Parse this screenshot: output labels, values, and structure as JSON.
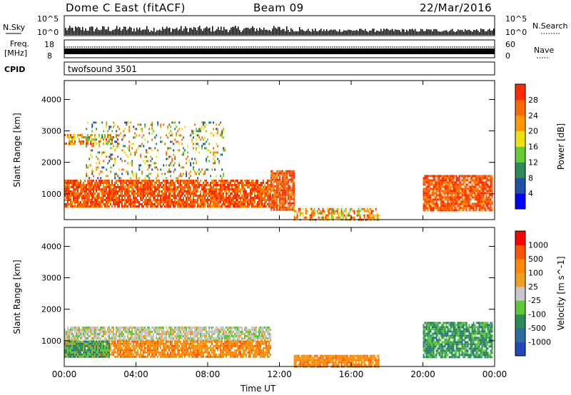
{
  "header": {
    "title": "Dome C East (fitACF)",
    "beam": "Beam 09",
    "date": "22/Mar/2016"
  },
  "sky_panel": {
    "left_label": "N.Sky",
    "left_ticks": [
      "10^5",
      "10^0"
    ],
    "right_ticks": [
      "10^5",
      "10^0"
    ],
    "right_label": "N.Search"
  },
  "freq_panel": {
    "left_label_line1": "Freq.",
    "left_label_line2": "[MHz]",
    "left_ticks": [
      "18",
      "8"
    ],
    "right_ticks": [
      "60",
      "0"
    ],
    "right_label": "Nave"
  },
  "cpid_panel": {
    "label": "CPID",
    "program": "twofsound 3501"
  },
  "chart_data": [
    {
      "type": "heatmap",
      "parameter": "Power",
      "ylabel": "Slant Range [km]",
      "xlabel": "Time UT",
      "x_ticks": [
        "00:00",
        "04:00",
        "08:00",
        "12:00",
        "16:00",
        "20:00",
        "00:00"
      ],
      "xlim": [
        0,
        24
      ],
      "y_ticks": [
        1000,
        2000,
        3000,
        4000
      ],
      "ylim": [
        180,
        4600
      ],
      "colorbar": {
        "label": "Power [dB]",
        "ticks": [
          "4",
          "8",
          "12",
          "16",
          "20",
          "24",
          "28"
        ],
        "colors": [
          "#0000ff",
          "#1f4fa8",
          "#2e8b57",
          "#66cc33",
          "#f0e010",
          "#ff9900",
          "#ff6a00",
          "#ff2a00"
        ]
      },
      "echo_regions": [
        {
          "t": [
            0.0,
            11.5
          ],
          "r": [
            600,
            1450
          ],
          "level": "strong"
        },
        {
          "t": [
            0.0,
            3.0
          ],
          "r": [
            2600,
            2900
          ],
          "level": "moderate"
        },
        {
          "t": [
            1.2,
            9.0
          ],
          "r": [
            1500,
            3300
          ],
          "level": "weak"
        },
        {
          "t": [
            11.5,
            12.8
          ],
          "r": [
            500,
            1750
          ],
          "level": "strong"
        },
        {
          "t": [
            12.8,
            17.5
          ],
          "r": [
            200,
            550
          ],
          "level": "moderate"
        },
        {
          "t": [
            20.0,
            23.9
          ],
          "r": [
            500,
            1600
          ],
          "level": "strong"
        }
      ]
    },
    {
      "type": "heatmap",
      "parameter": "Velocity",
      "ylabel": "Slant Range [km]",
      "xlabel": "Time UT",
      "x_ticks": [
        "00:00",
        "04:00",
        "08:00",
        "12:00",
        "16:00",
        "20:00",
        "00:00"
      ],
      "xlim": [
        0,
        24
      ],
      "y_ticks": [
        1000,
        2000,
        3000,
        4000
      ],
      "ylim": [
        180,
        4600
      ],
      "colorbar": {
        "label": "Velocity [m s^-1]",
        "ticks": [
          "1000",
          "500",
          "100",
          "25",
          "-25",
          "-100",
          "-500",
          "-1000"
        ],
        "colors": [
          "#2346b8",
          "#2e6b9e",
          "#2e8b57",
          "#5cc83a",
          "#c8c8c8",
          "#f0a020",
          "#ff8800",
          "#ff5500",
          "#ff0000"
        ]
      },
      "echo_regions": [
        {
          "t": [
            0.0,
            11.5
          ],
          "r": [
            1000,
            1450
          ],
          "level": "ground-scatter"
        },
        {
          "t": [
            0.0,
            11.5
          ],
          "r": [
            500,
            1000
          ],
          "level": "negative"
        },
        {
          "t": [
            0.0,
            2.5
          ],
          "r": [
            500,
            1000
          ],
          "level": "positive"
        },
        {
          "t": [
            20.0,
            23.9
          ],
          "r": [
            500,
            1600
          ],
          "level": "positive"
        },
        {
          "t": [
            12.8,
            17.5
          ],
          "r": [
            200,
            550
          ],
          "level": "negative"
        }
      ]
    }
  ],
  "axis_label_x": "Time UT"
}
